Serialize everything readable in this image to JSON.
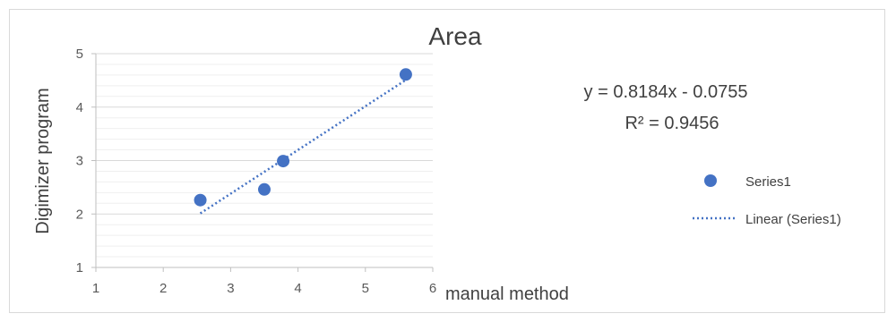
{
  "chart_data": {
    "type": "scatter",
    "title": "Area",
    "xlabel": "manual method",
    "ylabel": "Digimizer program",
    "xlim": [
      1,
      6
    ],
    "ylim": [
      1,
      5
    ],
    "x_ticks": [
      "1",
      "2",
      "3",
      "4",
      "5",
      "6"
    ],
    "y_ticks": [
      "1",
      "2",
      "3",
      "4",
      "5"
    ],
    "grid": "horizontal major and minor",
    "legend_position": "right",
    "series": [
      {
        "name": "Series1",
        "color": "#4472c4",
        "points": [
          {
            "x": 2.55,
            "y": 2.26
          },
          {
            "x": 3.5,
            "y": 2.46
          },
          {
            "x": 3.78,
            "y": 2.99
          },
          {
            "x": 5.6,
            "y": 4.61
          }
        ]
      }
    ],
    "trendline": {
      "name": "Linear (Series1)",
      "slope": 0.8184,
      "intercept": -0.0755,
      "x_range": [
        2.55,
        5.6
      ],
      "style": "dotted",
      "color": "#4472c4"
    },
    "equation": "y = 0.8184x - 0.0755",
    "r_squared": "R² = 0.9456",
    "legend": [
      "Series1",
      "Linear (Series1)"
    ]
  }
}
